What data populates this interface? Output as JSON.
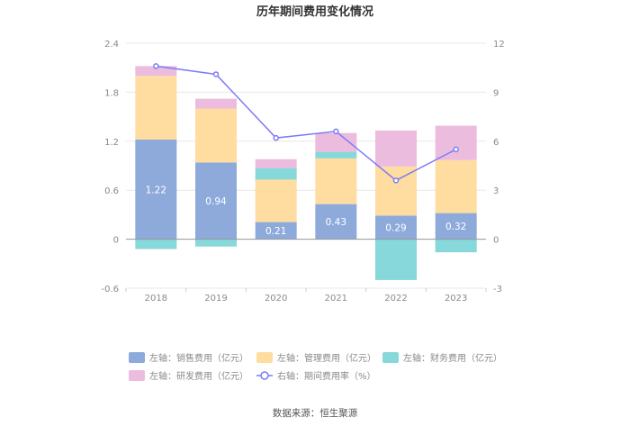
{
  "title": "历年期间费用变化情况",
  "source": "数据来源：恒生聚源",
  "chart_data": {
    "type": "bar",
    "stacked": true,
    "categories": [
      "2018",
      "2019",
      "2020",
      "2021",
      "2022",
      "2023"
    ],
    "series": [
      {
        "key": "sales",
        "name": "左轴：销售费用（亿元）",
        "axis": "left",
        "values": [
          1.22,
          0.94,
          0.21,
          0.43,
          0.29,
          0.32
        ],
        "color": "#8eaadb",
        "labels": [
          "1.22",
          "0.94",
          "0.21",
          "0.43",
          "0.29",
          "0.32"
        ]
      },
      {
        "key": "admin",
        "name": "左轴：管理费用（亿元）",
        "axis": "left",
        "values": [
          0.78,
          0.66,
          0.52,
          0.56,
          0.6,
          0.65
        ],
        "color": "#ffdca0"
      },
      {
        "key": "finance",
        "name": "左轴：财务费用（亿元）",
        "axis": "left",
        "values": [
          -0.12,
          -0.09,
          0.14,
          0.08,
          -0.5,
          -0.16
        ],
        "color": "#86d8da"
      },
      {
        "key": "rd",
        "name": "左轴：研发费用（亿元）",
        "axis": "left",
        "values": [
          0.12,
          0.12,
          0.11,
          0.23,
          0.44,
          0.42
        ],
        "color": "#ebbcdd"
      },
      {
        "key": "rate",
        "name": "右轴：期间费用率（%）",
        "axis": "right",
        "type": "line",
        "values": [
          10.6,
          10.1,
          6.2,
          6.6,
          3.6,
          5.5
        ],
        "color": "#7b7cf5"
      }
    ],
    "left_axis": {
      "ylim": [
        -0.6,
        2.4
      ],
      "ticks": [
        "2.4",
        "1.8",
        "1.2",
        "0.6",
        "0",
        "-0.6"
      ],
      "tick_values": [
        2.4,
        1.8,
        1.2,
        0.6,
        0,
        -0.6
      ]
    },
    "right_axis": {
      "ylim": [
        -3,
        12
      ],
      "ticks": [
        "12",
        "9",
        "6",
        "3",
        "0",
        "-3"
      ],
      "tick_values": [
        12,
        9,
        6,
        3,
        0,
        -3
      ]
    },
    "legend_position": "bottom"
  }
}
